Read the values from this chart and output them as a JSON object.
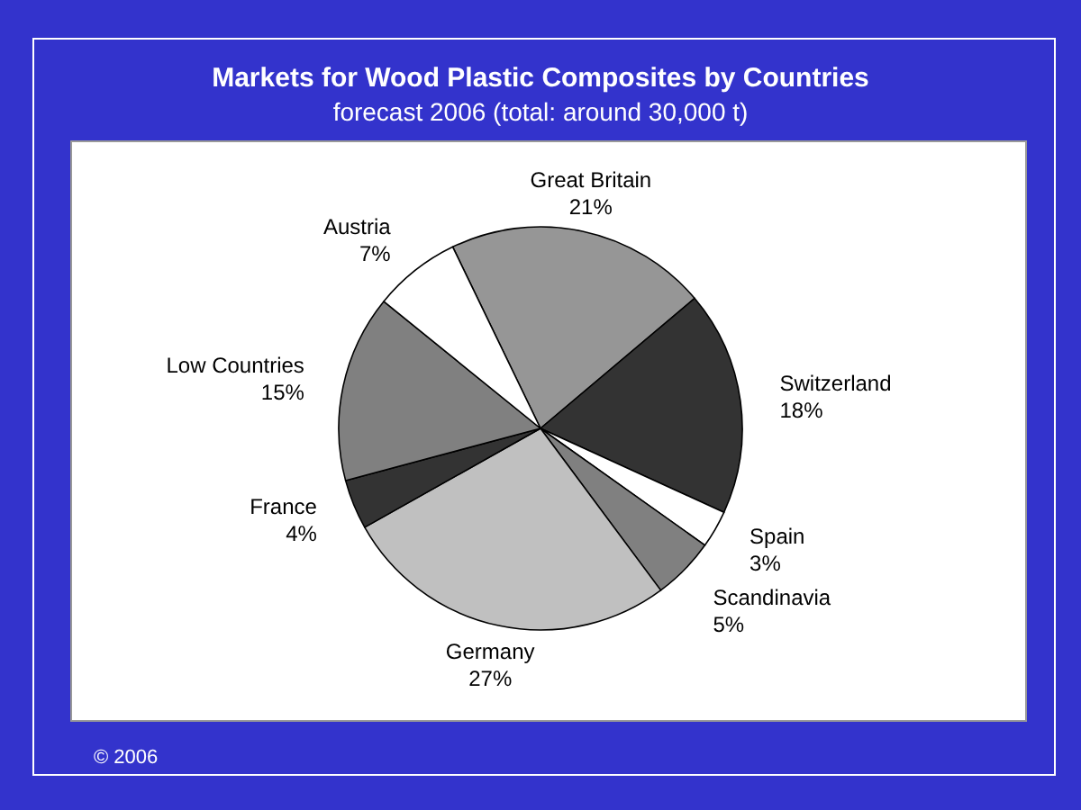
{
  "chart_data": {
    "type": "pie",
    "title": "Markets for Wood Plastic Composites by Countries",
    "subtitle": "forecast 2006 (total: around 30,000 t)",
    "categories": [
      "Great Britain",
      "Switzerland",
      "Spain",
      "Scandinavia",
      "Germany",
      "France",
      "Low Countries",
      "Austria"
    ],
    "values": [
      21,
      18,
      3,
      5,
      27,
      4,
      15,
      7
    ],
    "value_labels": [
      "21%",
      "18%",
      "3%",
      "5%",
      "27%",
      "4%",
      "15%",
      "7%"
    ],
    "colors": [
      "#969696",
      "#333333",
      "#ffffff",
      "#808080",
      "#c0c0c0",
      "#333333",
      "#808080",
      "#ffffff"
    ],
    "annotations": [
      "© 2006"
    ],
    "legend": false
  }
}
